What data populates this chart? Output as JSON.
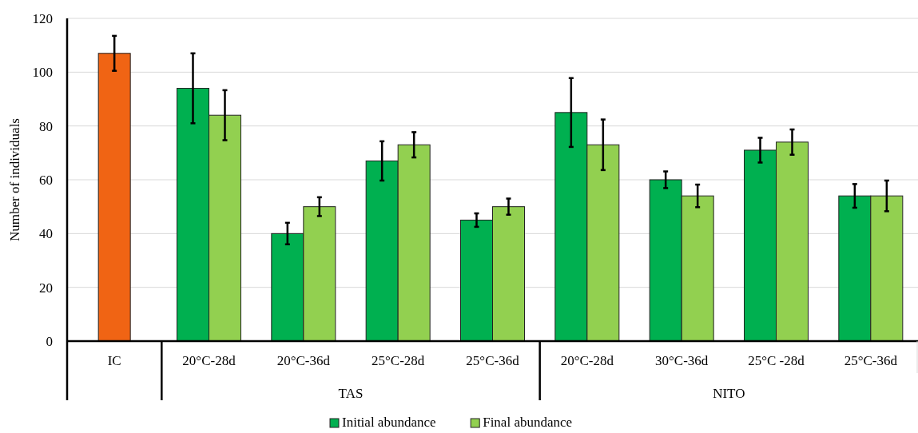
{
  "chart_data": {
    "type": "bar",
    "ylabel": "Number of individuals",
    "categories": [
      "IC",
      "20°C-28d",
      "20°C-36d",
      "25°C-28d",
      "25°C-36d",
      "20°C-28d",
      "30°C-36d",
      "25°C -28d",
      "25°C-36d"
    ],
    "series": [
      {
        "name": "Initial abundance",
        "color": "#00b050",
        "colors": [
          "#f06414",
          "#00b050",
          "#00b050",
          "#00b050",
          "#00b050",
          "#00b050",
          "#00b050",
          "#00b050",
          "#00b050"
        ],
        "values": [
          107,
          94,
          40,
          67,
          45,
          85,
          60,
          71,
          54
        ],
        "errors": [
          6.5,
          13,
          4,
          7.3,
          2.5,
          12.8,
          3.1,
          4.6,
          4.4
        ]
      },
      {
        "name": "Final abundance",
        "color": "#92d050",
        "values": [
          null,
          84,
          50,
          73,
          50,
          73,
          54,
          74,
          54
        ],
        "errors": [
          null,
          9.3,
          3.5,
          4.7,
          3,
          9.4,
          4.2,
          4.7,
          5.7
        ]
      }
    ],
    "annotations": [
      "TAS",
      "NITO"
    ],
    "ylim": [
      0,
      120
    ],
    "yticks": [
      0,
      20,
      40,
      60,
      80,
      100,
      120
    ],
    "grid": "y",
    "legend": "bottom"
  }
}
